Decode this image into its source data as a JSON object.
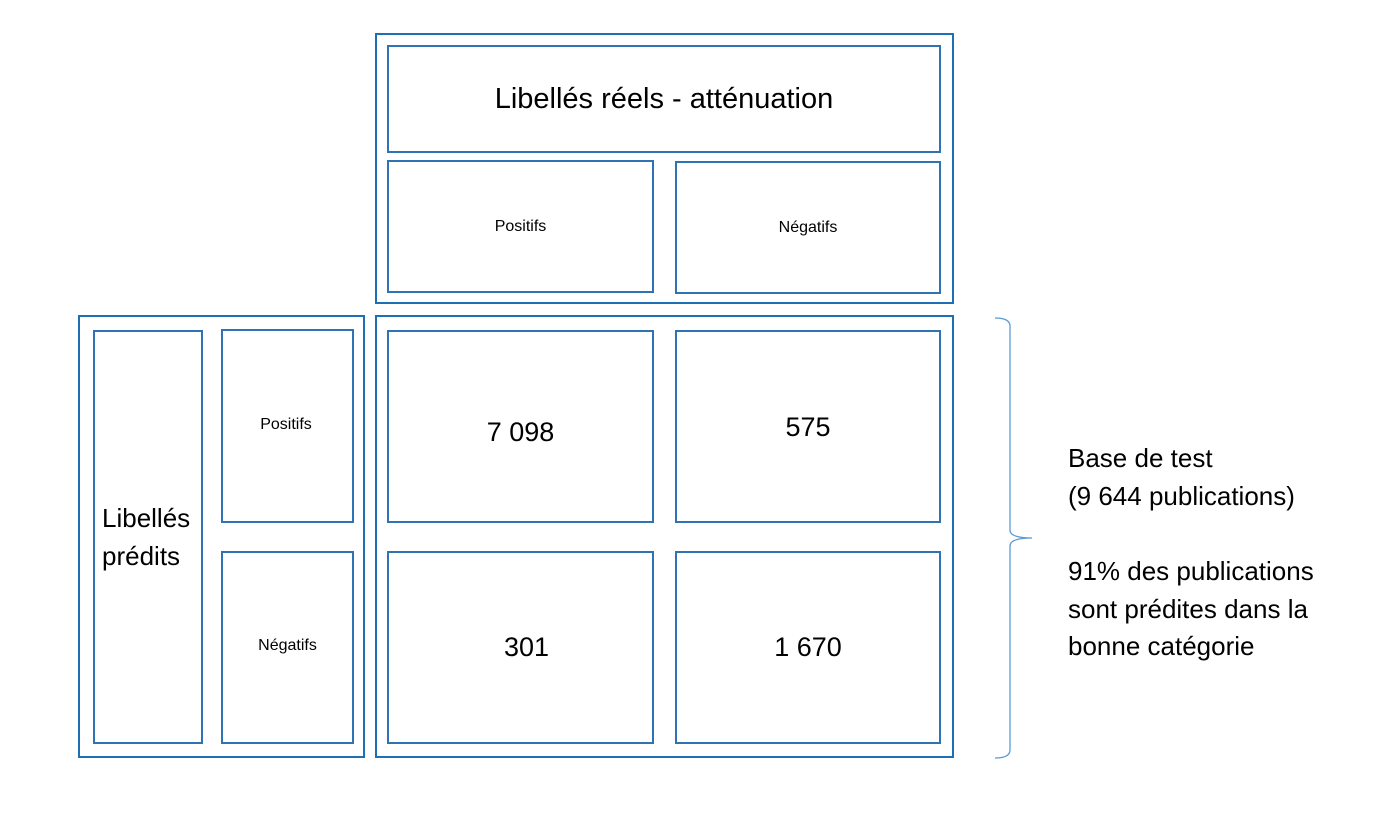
{
  "colors": {
    "border": "#1f6fb5",
    "brace": "#5b9bd5"
  },
  "header": {
    "title": "Libellés réels - atténuation",
    "positive_label": "Positifs",
    "negative_label": "Négatifs"
  },
  "side": {
    "title_line1": "Libellés",
    "title_line2": "prédits",
    "positive_label": "Positifs",
    "negative_label": "Négatifs"
  },
  "matrix": {
    "pos_pos": "7 098",
    "pos_neg": "575",
    "neg_pos": "301",
    "neg_neg": "1 670"
  },
  "annotation": {
    "line1": "Base de test",
    "line2": "(9 644 publications)",
    "line3": "91% des publications",
    "line4": "sont prédites dans la",
    "line5": "bonne catégorie"
  }
}
